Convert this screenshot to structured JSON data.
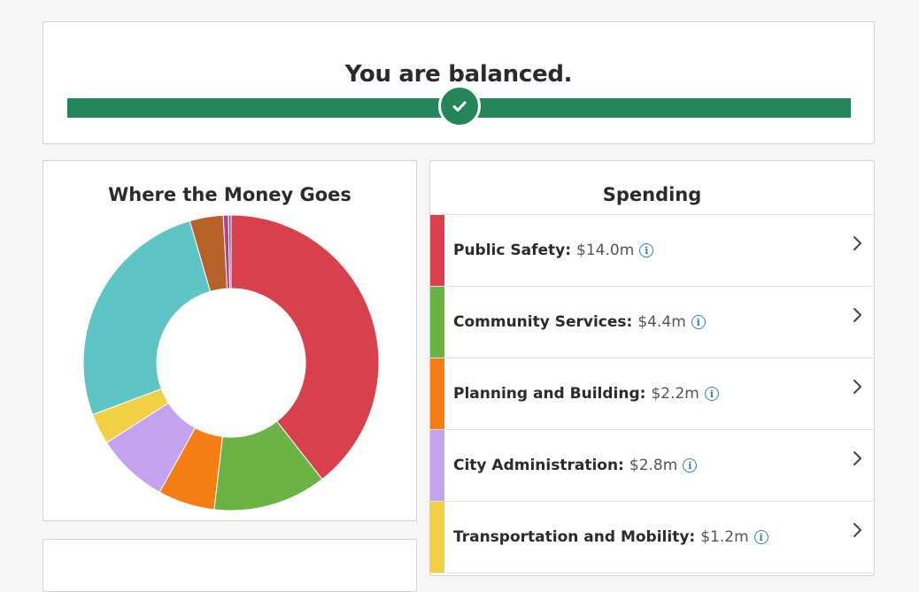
{
  "balance": {
    "title": "You are balanced.",
    "track_color": "#22865a",
    "indicator_icon": "check-icon"
  },
  "where_money_goes": {
    "title": "Where the Money Goes"
  },
  "chart_data": {
    "type": "pie",
    "donut": true,
    "title": "Where the Money Goes",
    "slices": [
      {
        "value": 14.0,
        "color": "#d8404c"
      },
      {
        "value": 4.4,
        "color": "#6ab344"
      },
      {
        "value": 2.2,
        "color": "#f57d13"
      },
      {
        "value": 2.8,
        "color": "#c3a3ee"
      },
      {
        "value": 1.2,
        "color": "#f2d045"
      },
      {
        "value": 9.3,
        "color": "#5ec4c4"
      },
      {
        "value": 1.3,
        "color": "#b66128"
      },
      {
        "value": 0.2,
        "color": "#b63d8f"
      },
      {
        "value": 0.1,
        "color": "#6f58a8"
      }
    ]
  },
  "spending": {
    "title": "Spending",
    "items": [
      {
        "name": "Public Safety:",
        "amount": "$14.0m",
        "color": "#d8404c"
      },
      {
        "name": "Community Services:",
        "amount": "$4.4m",
        "color": "#6ab344"
      },
      {
        "name": "Planning and Building:",
        "amount": "$2.2m",
        "color": "#f57d13"
      },
      {
        "name": "City Administration:",
        "amount": "$2.8m",
        "color": "#c3a3ee"
      },
      {
        "name": "Transportation and Mobility:",
        "amount": "$1.2m",
        "color": "#f2d045"
      }
    ]
  }
}
